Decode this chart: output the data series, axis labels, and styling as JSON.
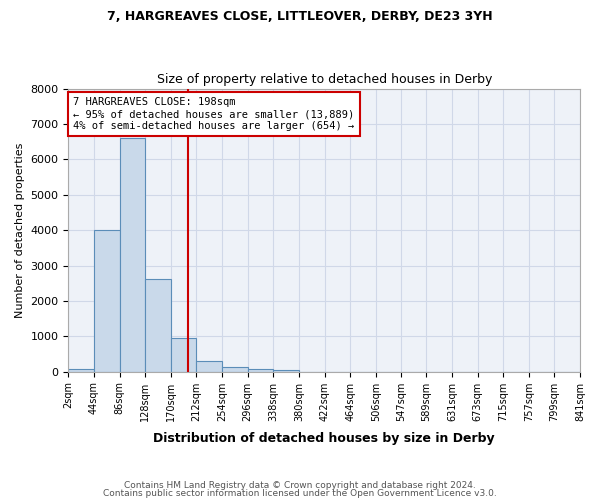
{
  "title1": "7, HARGREAVES CLOSE, LITTLEOVER, DERBY, DE23 3YH",
  "title2": "Size of property relative to detached houses in Derby",
  "xlabel": "Distribution of detached houses by size in Derby",
  "ylabel": "Number of detached properties",
  "footnote1": "Contains HM Land Registry data © Crown copyright and database right 2024.",
  "footnote2": "Contains public sector information licensed under the Open Government Licence v3.0.",
  "annotation_line1": "7 HARGREAVES CLOSE: 198sqm",
  "annotation_line2": "← 95% of detached houses are smaller (13,889)",
  "annotation_line3": "4% of semi-detached houses are larger (654) →",
  "property_line_x": 198,
  "bar_edges": [
    2,
    44,
    86,
    128,
    170,
    212,
    254,
    296,
    338,
    380,
    422,
    464,
    506,
    547,
    589,
    631,
    673,
    715,
    757,
    799,
    841
  ],
  "bar_heights": [
    80,
    4000,
    6600,
    2620,
    960,
    310,
    140,
    80,
    60,
    0,
    0,
    0,
    0,
    0,
    0,
    0,
    0,
    0,
    0,
    0
  ],
  "bar_color": "#c9d9ea",
  "bar_edgecolor": "#5b8db8",
  "vline_color": "#cc0000",
  "annotation_box_edgecolor": "#cc0000",
  "grid_color": "#d0d8e8",
  "background_color": "#eef2f8",
  "ylim": [
    0,
    8000
  ],
  "yticks": [
    0,
    1000,
    2000,
    3000,
    4000,
    5000,
    6000,
    7000,
    8000
  ]
}
